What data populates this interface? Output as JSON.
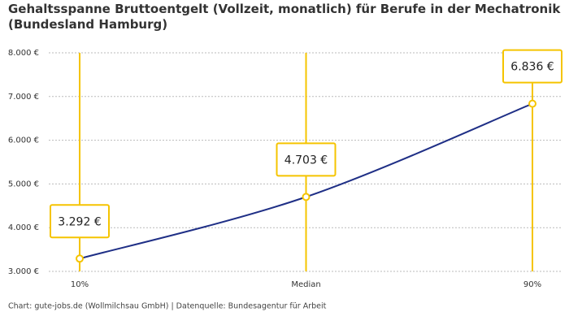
{
  "chart_data": {
    "type": "line",
    "title": "Gehaltsspanne Bruttoentgelt (Vollzeit, monatlich) für Berufe in der Mechatronik (Bundesland Hamburg)",
    "categories": [
      "10%",
      "Median",
      "90%"
    ],
    "series": [
      {
        "name": "Bruttoentgelt",
        "color": "#1f2f86",
        "values": [
          3292,
          4703,
          6836
        ],
        "value_labels": [
          "3.292 €",
          "4.703 €",
          "6.836 €"
        ]
      }
    ],
    "ylim": [
      3000,
      8000
    ],
    "yticks": [
      {
        "value": 3000,
        "label": "3.000 €"
      },
      {
        "value": 4000,
        "label": "4.000 €"
      },
      {
        "value": 5000,
        "label": "5.000 €"
      },
      {
        "value": 6000,
        "label": "6.000 €"
      },
      {
        "value": 7000,
        "label": "7.000 €"
      },
      {
        "value": 8000,
        "label": "8.000 €"
      }
    ],
    "grid": true,
    "marker_color": "#f5c400",
    "source": "Chart: gute-jobs.de (Wollmilchsau GmbH) | Datenquelle: Bundesagentur für Arbeit"
  }
}
